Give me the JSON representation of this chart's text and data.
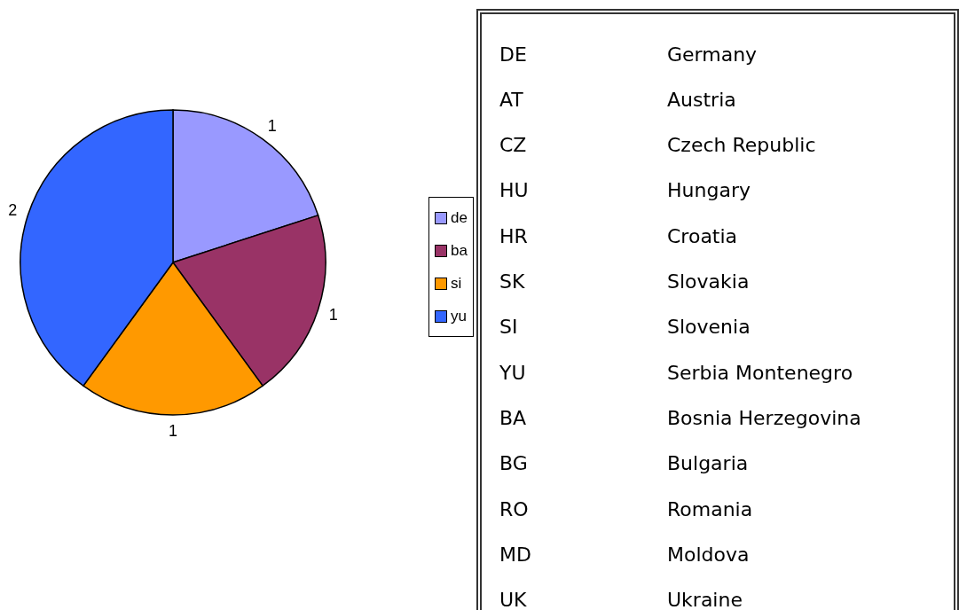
{
  "chart_data": [
    {
      "type": "pie",
      "categories": [
        "de",
        "ba",
        "si",
        "yu"
      ],
      "values": [
        1,
        1,
        1,
        2
      ],
      "colors": [
        "#9999ff",
        "#993366",
        "#ff9900",
        "#3366ff"
      ],
      "data_labels": true,
      "legend": "right"
    },
    {
      "type": "other",
      "annotations": [
        "DE",
        "Germany",
        "AT",
        "Austria",
        "CZ",
        "Czech Republic",
        "HU",
        "Hungary",
        "HR",
        "Croatia",
        "SK",
        "Slovakia",
        "SI",
        "Slovenia",
        "YU",
        "Serbia Montenegro",
        "BA",
        "Bosnia Herzegovina",
        "BG",
        "Bulgaria",
        "RO",
        "Romania",
        "MD",
        "Moldova",
        "UK",
        "Ukraine"
      ]
    }
  ]
}
